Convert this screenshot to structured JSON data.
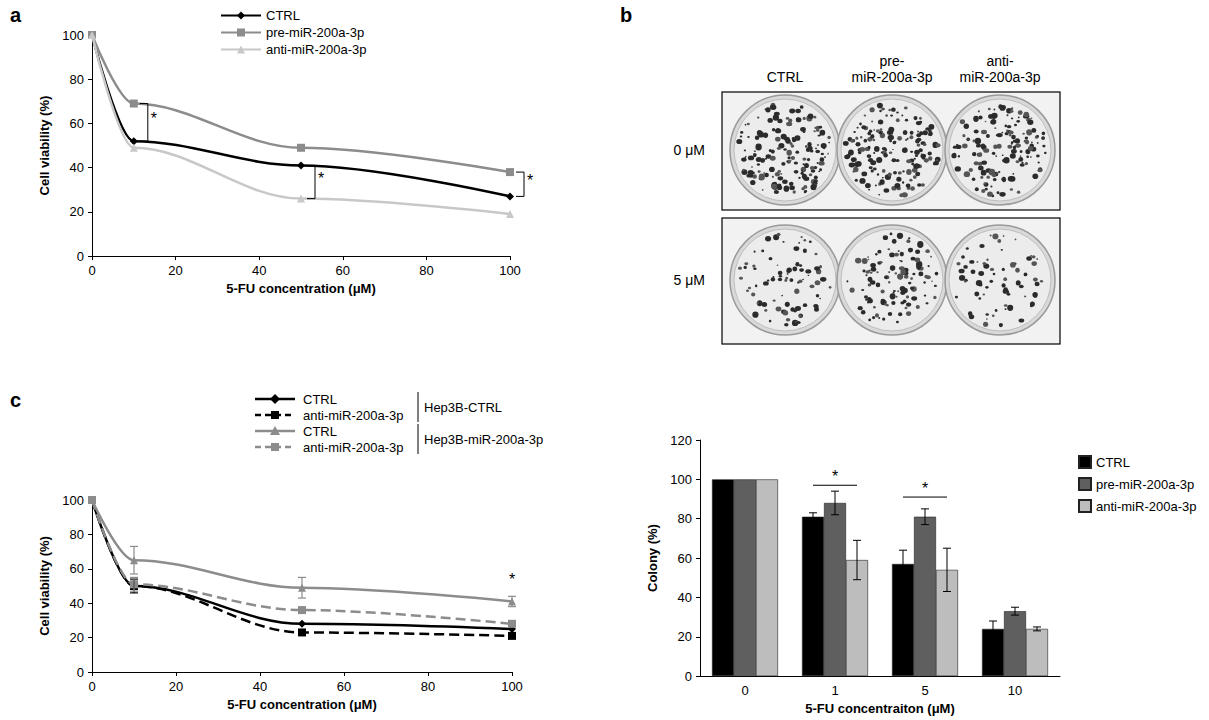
{
  "chart_data": [
    {
      "type": "line",
      "title": "a",
      "x": [
        0,
        10,
        50,
        100
      ],
      "xlabel": "5-FU concentration (μM)",
      "ylabel": "Cell viability (%)",
      "xlim": [
        0,
        100
      ],
      "xticks": [
        0,
        20,
        40,
        60,
        80,
        100
      ],
      "ylim": [
        0,
        100
      ],
      "yticks": [
        0,
        20,
        40,
        60,
        80,
        100
      ],
      "grid": false,
      "legend": "top",
      "series": [
        {
          "name": "CTRL",
          "color": "#000000",
          "marker": "diamond",
          "line_style": "solid",
          "values": [
            100,
            52,
            41,
            27
          ]
        },
        {
          "name": "pre-miR-200a-3p",
          "color": "#8c8c8c",
          "marker": "square",
          "line_style": "solid",
          "values": [
            100,
            69,
            49,
            38
          ]
        },
        {
          "name": "anti-miR-200a-3p",
          "color": "#c8c8c8",
          "marker": "triangle",
          "line_style": "solid",
          "values": [
            100,
            49,
            26,
            19
          ]
        }
      ],
      "annotations": [
        {
          "text": "*",
          "x": 10,
          "y": [
            52,
            69
          ]
        },
        {
          "text": "*",
          "x": 50,
          "y": [
            26,
            41
          ]
        },
        {
          "text": "*",
          "x": 100,
          "y": [
            27,
            38
          ]
        }
      ]
    },
    {
      "type": "line",
      "title": "c",
      "x": [
        0,
        10,
        50,
        100
      ],
      "xlabel": "5-FU concentration (μM)",
      "ylabel": "Cell viability (%)",
      "xlim": [
        0,
        100
      ],
      "xticks": [
        0,
        20,
        40,
        60,
        80,
        100
      ],
      "ylim": [
        0,
        100
      ],
      "yticks": [
        0,
        20,
        40,
        60,
        80,
        100
      ],
      "grid": false,
      "legend": "top",
      "series": [
        {
          "name": "CTRL",
          "group": "Hep3B-CTRL",
          "color": "#000000",
          "marker": "diamond",
          "line_style": "solid",
          "values": [
            100,
            50,
            28,
            25
          ],
          "errors": [
            0,
            4,
            0,
            0
          ]
        },
        {
          "name": "anti-miR-200a-3p",
          "group": "Hep3B-CTRL",
          "color": "#000000",
          "marker": "square",
          "line_style": "dashed",
          "values": [
            100,
            50,
            23,
            21
          ],
          "errors": [
            0,
            0,
            0,
            0
          ]
        },
        {
          "name": "CTRL",
          "group": "Hep3B-miR-200a-3p",
          "color": "#8c8c8c",
          "marker": "triangle",
          "line_style": "solid",
          "values": [
            100,
            65,
            49,
            41
          ],
          "errors": [
            0,
            8,
            6,
            3
          ]
        },
        {
          "name": "anti-miR-200a-3p",
          "group": "Hep3B-miR-200a-3p",
          "color": "#8c8c8c",
          "marker": "square",
          "line_style": "dashed",
          "values": [
            100,
            51,
            36,
            28
          ],
          "errors": [
            0,
            4,
            0,
            0
          ]
        }
      ],
      "annotations": [
        {
          "text": "*",
          "x": 100,
          "y": 48
        }
      ]
    },
    {
      "type": "bar",
      "categories": [
        "0",
        "1",
        "5",
        "10"
      ],
      "xlabel": "5-FU concentraiton (μM)",
      "ylabel": "Colony (%)",
      "ylim": [
        0,
        120
      ],
      "yticks": [
        0,
        20,
        40,
        60,
        80,
        100,
        120
      ],
      "grid": false,
      "legend": "right",
      "series": [
        {
          "name": "CTRL",
          "color": "#000000",
          "values": [
            100,
            81,
            57,
            24
          ],
          "errors": [
            0,
            2,
            7,
            4
          ]
        },
        {
          "name": "pre-miR-200a-3p",
          "color": "#5f5f5f",
          "values": [
            100,
            88,
            81,
            33
          ],
          "errors": [
            0,
            6,
            4,
            2
          ]
        },
        {
          "name": "anti-miR-200a-3p",
          "color": "#bdbdbd",
          "values": [
            100,
            59,
            54,
            24
          ],
          "errors": [
            0,
            10,
            11,
            1
          ]
        }
      ],
      "annotations": [
        {
          "text": "*",
          "x": "1",
          "y": 97
        },
        {
          "text": "*",
          "x": "5",
          "y": 91
        }
      ]
    }
  ],
  "plates": {
    "title": "b",
    "columns": [
      "CTRL",
      "pre-\nmiR-200a-3p",
      "anti-\nmiR-200a-3p"
    ],
    "rows": [
      "0 μM",
      "5 μM"
    ]
  }
}
